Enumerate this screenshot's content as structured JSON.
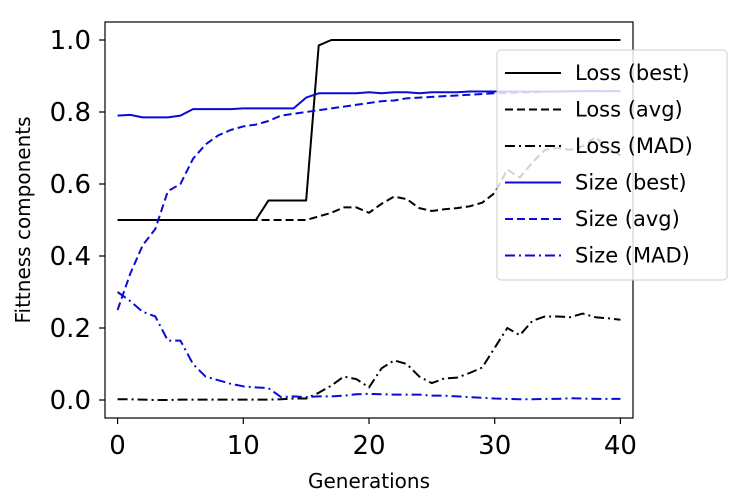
{
  "chart_data": {
    "type": "line",
    "title": "",
    "xlabel": "Generations",
    "ylabel": "Fittness components",
    "xlim": [
      -1,
      41
    ],
    "ylim": [
      -0.05,
      1.05
    ],
    "xticks": [
      0,
      10,
      20,
      30,
      40
    ],
    "yticks": [
      0.0,
      0.2,
      0.4,
      0.6,
      0.8,
      1.0
    ],
    "xtick_labels": [
      "0",
      "10",
      "20",
      "30",
      "40"
    ],
    "ytick_labels": [
      "0.0",
      "0.2",
      "0.4",
      "0.6",
      "0.8",
      "1.0"
    ],
    "grid": false,
    "legend_position": "upper-right",
    "series": [
      {
        "name": "Loss (best)",
        "color": "#000000",
        "dash": "solid",
        "x": [
          0,
          1,
          2,
          3,
          4,
          5,
          6,
          7,
          8,
          9,
          10,
          11,
          12,
          13,
          14,
          15,
          16,
          17,
          18,
          19,
          20,
          21,
          22,
          23,
          24,
          25,
          26,
          27,
          28,
          29,
          30,
          31,
          32,
          33,
          34,
          35,
          36,
          37,
          38,
          39,
          40
        ],
        "y": [
          0.5,
          0.5,
          0.5,
          0.5,
          0.5,
          0.5,
          0.5,
          0.5,
          0.5,
          0.5,
          0.5,
          0.5,
          0.554,
          0.554,
          0.554,
          0.554,
          0.985,
          1.0,
          1.0,
          1.0,
          1.0,
          1.0,
          1.0,
          1.0,
          1.0,
          1.0,
          1.0,
          1.0,
          1.0,
          1.0,
          1.0,
          1.0,
          1.0,
          1.0,
          1.0,
          1.0,
          1.0,
          1.0,
          1.0,
          1.0,
          1.0
        ]
      },
      {
        "name": "Loss (avg)",
        "color": "#000000",
        "dash": "dashed",
        "x": [
          0,
          1,
          2,
          3,
          4,
          5,
          6,
          7,
          8,
          9,
          10,
          11,
          12,
          13,
          14,
          15,
          16,
          17,
          18,
          19,
          20,
          21,
          22,
          23,
          24,
          25,
          26,
          27,
          28,
          29,
          30,
          31,
          32,
          33,
          34,
          35,
          36,
          37,
          38,
          39,
          40
        ],
        "y": [
          0.5,
          0.5,
          0.5,
          0.5,
          0.5,
          0.5,
          0.5,
          0.5,
          0.5,
          0.5,
          0.5,
          0.5,
          0.5,
          0.5,
          0.5,
          0.5,
          0.51,
          0.52,
          0.535,
          0.535,
          0.52,
          0.545,
          0.565,
          0.558,
          0.533,
          0.525,
          0.53,
          0.533,
          0.538,
          0.548,
          0.575,
          0.64,
          0.618,
          0.66,
          0.695,
          0.7,
          0.695,
          0.705,
          0.73,
          0.7,
          0.68
        ]
      },
      {
        "name": "Loss (MAD)",
        "color": "#000000",
        "dash": "dashdot",
        "x": [
          0,
          1,
          2,
          3,
          4,
          5,
          6,
          7,
          8,
          9,
          10,
          11,
          12,
          13,
          14,
          15,
          16,
          17,
          18,
          19,
          20,
          21,
          22,
          23,
          24,
          25,
          26,
          27,
          28,
          29,
          30,
          31,
          32,
          33,
          34,
          35,
          36,
          37,
          38,
          39,
          40
        ],
        "y": [
          0.002,
          0.002,
          0.001,
          0.0,
          0.0,
          0.001,
          0.001,
          0.001,
          0.001,
          0.001,
          0.001,
          0.001,
          0.001,
          0.002,
          0.004,
          0.004,
          0.02,
          0.04,
          0.065,
          0.058,
          0.035,
          0.088,
          0.11,
          0.1,
          0.065,
          0.047,
          0.06,
          0.062,
          0.075,
          0.09,
          0.145,
          0.2,
          0.18,
          0.22,
          0.232,
          0.232,
          0.23,
          0.24,
          0.23,
          0.227,
          0.223
        ]
      },
      {
        "name": "Size (best)",
        "color": "#0b0bd8",
        "dash": "solid",
        "x": [
          0,
          1,
          2,
          3,
          4,
          5,
          6,
          7,
          8,
          9,
          10,
          11,
          12,
          13,
          14,
          15,
          16,
          17,
          18,
          19,
          20,
          21,
          22,
          23,
          24,
          25,
          26,
          27,
          28,
          29,
          30,
          31,
          32,
          33,
          34,
          35,
          36,
          37,
          38,
          39,
          40
        ],
        "y": [
          0.79,
          0.792,
          0.785,
          0.785,
          0.785,
          0.79,
          0.808,
          0.808,
          0.808,
          0.808,
          0.81,
          0.81,
          0.81,
          0.81,
          0.81,
          0.84,
          0.852,
          0.852,
          0.852,
          0.852,
          0.855,
          0.852,
          0.855,
          0.855,
          0.852,
          0.855,
          0.855,
          0.855,
          0.857,
          0.857,
          0.857,
          0.857,
          0.857,
          0.857,
          0.857,
          0.857,
          0.858,
          0.858,
          0.858,
          0.858,
          0.858
        ]
      },
      {
        "name": "Size (avg)",
        "color": "#0b0bd8",
        "dash": "dashed",
        "x": [
          0,
          1,
          2,
          3,
          4,
          5,
          6,
          7,
          8,
          9,
          10,
          11,
          12,
          13,
          14,
          15,
          16,
          17,
          18,
          19,
          20,
          21,
          22,
          23,
          24,
          25,
          26,
          27,
          28,
          29,
          30,
          31,
          32,
          33,
          34,
          35,
          36,
          37,
          38,
          39,
          40
        ],
        "y": [
          0.25,
          0.35,
          0.43,
          0.475,
          0.58,
          0.6,
          0.67,
          0.71,
          0.735,
          0.75,
          0.76,
          0.765,
          0.775,
          0.79,
          0.795,
          0.8,
          0.805,
          0.81,
          0.815,
          0.82,
          0.825,
          0.83,
          0.832,
          0.838,
          0.84,
          0.842,
          0.844,
          0.846,
          0.848,
          0.85,
          0.852,
          0.853,
          0.854,
          0.855,
          0.856,
          0.857,
          0.857,
          0.858,
          0.858,
          0.858,
          0.858
        ]
      },
      {
        "name": "Size (MAD)",
        "color": "#0b0bd8",
        "dash": "dashdot",
        "x": [
          0,
          1,
          2,
          3,
          4,
          5,
          6,
          7,
          8,
          9,
          10,
          11,
          12,
          13,
          14,
          15,
          16,
          17,
          18,
          19,
          20,
          21,
          22,
          23,
          24,
          25,
          26,
          27,
          28,
          29,
          30,
          31,
          32,
          33,
          34,
          35,
          36,
          37,
          38,
          39,
          40
        ],
        "y": [
          0.3,
          0.275,
          0.245,
          0.232,
          0.165,
          0.165,
          0.1,
          0.065,
          0.055,
          0.045,
          0.038,
          0.035,
          0.033,
          0.008,
          0.01,
          0.008,
          0.01,
          0.01,
          0.012,
          0.016,
          0.017,
          0.016,
          0.015,
          0.015,
          0.015,
          0.012,
          0.012,
          0.01,
          0.008,
          0.006,
          0.004,
          0.003,
          0.002,
          0.002,
          0.003,
          0.003,
          0.005,
          0.004,
          0.003,
          0.003,
          0.003
        ]
      }
    ]
  }
}
